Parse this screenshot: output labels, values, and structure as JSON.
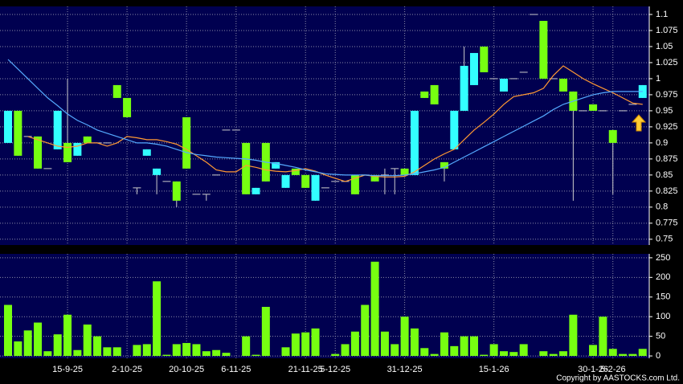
{
  "chart_data": {
    "type": "candlestick",
    "categories": [
      null,
      null,
      null,
      null,
      null,
      null,
      "15-9-25",
      null,
      null,
      null,
      null,
      null,
      "2-10-25",
      null,
      null,
      null,
      null,
      null,
      "20-10-25",
      null,
      null,
      null,
      null,
      "6-11-25",
      null,
      null,
      null,
      null,
      null,
      null,
      "21-11-25",
      null,
      null,
      "5-12-25",
      null,
      null,
      null,
      null,
      null,
      null,
      "31-12-25",
      null,
      null,
      null,
      null,
      null,
      null,
      null,
      null,
      "15-1-26",
      null,
      null,
      null,
      null,
      null,
      null,
      null,
      null,
      null,
      "30-1-26",
      null,
      "5-2-26",
      null,
      null,
      null
    ],
    "open": [
      0.9,
      0.95,
      0.91,
      0.91,
      0.86,
      0.89,
      0.9,
      0.88,
      0.91,
      0.9,
      0.9,
      0.99,
      0.97,
      0.83,
      0.88,
      0.85,
      0.84,
      0.84,
      0.94,
      0.82,
      0.82,
      0.85,
      0.92,
      0.92,
      0.9,
      0.82,
      0.9,
      0.86,
      0.83,
      0.86,
      0.85,
      0.81,
      0.83,
      0.84,
      0.84,
      0.85,
      0.85,
      0.85,
      0.85,
      0.86,
      0.86,
      0.85,
      0.98,
      0.99,
      0.87,
      0.89,
      0.95,
      0.99,
      1.05,
      1.0,
      0.98,
      1.0,
      1.01,
      1.1,
      1.09,
      1.0,
      1.0,
      0.98,
      0.95,
      0.96,
      0.95,
      0.92,
      0.95,
      0.96,
      0.97
    ],
    "high": [
      0.95,
      0.95,
      0.91,
      0.91,
      0.86,
      0.95,
      1.0,
      0.9,
      0.91,
      0.9,
      0.9,
      0.99,
      0.97,
      0.83,
      0.89,
      0.86,
      0.84,
      0.84,
      0.94,
      0.82,
      0.82,
      0.85,
      0.92,
      0.92,
      0.9,
      0.83,
      0.9,
      0.87,
      0.85,
      0.86,
      0.85,
      0.85,
      0.83,
      0.84,
      0.84,
      0.85,
      0.85,
      0.85,
      0.86,
      0.86,
      0.86,
      0.95,
      0.98,
      0.99,
      0.87,
      0.95,
      1.05,
      1.04,
      1.05,
      1.0,
      1.0,
      1.0,
      1.01,
      1.1,
      1.09,
      1.0,
      1.0,
      0.98,
      0.95,
      0.96,
      0.95,
      0.92,
      0.95,
      0.96,
      0.99
    ],
    "low": [
      0.9,
      0.88,
      0.91,
      0.86,
      0.86,
      0.89,
      0.87,
      0.88,
      0.9,
      0.9,
      0.9,
      0.97,
      0.94,
      0.82,
      0.88,
      0.82,
      0.84,
      0.8,
      0.86,
      0.82,
      0.81,
      0.85,
      0.92,
      0.92,
      0.82,
      0.82,
      0.84,
      0.86,
      0.83,
      0.85,
      0.83,
      0.81,
      0.83,
      0.84,
      0.84,
      0.82,
      0.85,
      0.84,
      0.82,
      0.82,
      0.85,
      0.85,
      0.97,
      0.96,
      0.84,
      0.89,
      0.95,
      0.99,
      1.01,
      1.0,
      0.98,
      1.0,
      1.01,
      1.1,
      1.0,
      1.0,
      0.98,
      0.81,
      0.95,
      0.95,
      0.95,
      0.82,
      0.95,
      0.96,
      0.97
    ],
    "close": [
      0.95,
      0.88,
      0.91,
      0.86,
      0.86,
      0.95,
      0.87,
      0.9,
      0.9,
      0.9,
      0.9,
      0.97,
      0.94,
      0.83,
      0.89,
      0.86,
      0.84,
      0.81,
      0.86,
      0.82,
      0.82,
      0.85,
      0.92,
      0.92,
      0.82,
      0.83,
      0.84,
      0.87,
      0.85,
      0.85,
      0.83,
      0.85,
      0.83,
      0.84,
      0.84,
      0.82,
      0.85,
      0.84,
      0.85,
      0.86,
      0.85,
      0.95,
      0.97,
      0.96,
      0.86,
      0.95,
      1.02,
      1.04,
      1.01,
      1.0,
      1.0,
      1.0,
      1.01,
      1.1,
      1.0,
      1.0,
      0.98,
      0.95,
      0.95,
      0.95,
      0.95,
      0.9,
      0.95,
      0.96,
      0.99
    ],
    "up_color": "#33ffff",
    "down_color": "#77ff11",
    "moving_averages": [
      {
        "color": "#ff9933",
        "values": [
          null,
          null,
          0.91,
          0.905,
          0.9,
          0.895,
          0.893,
          0.895,
          0.9,
          0.9,
          0.895,
          0.9,
          0.91,
          0.908,
          0.905,
          0.905,
          0.902,
          0.898,
          0.89,
          0.88,
          0.87,
          0.858,
          0.855,
          0.855,
          0.865,
          0.862,
          0.858,
          0.856,
          0.855,
          0.857,
          0.86,
          0.856,
          0.85,
          0.845,
          0.84,
          0.845,
          0.85,
          0.848,
          0.847,
          0.847,
          0.848,
          0.855,
          0.865,
          0.875,
          0.883,
          0.89,
          0.905,
          0.92,
          0.932,
          0.945,
          0.96,
          0.972,
          0.975,
          0.978,
          0.985,
          1.005,
          1.02,
          1.01,
          1.0,
          0.992,
          0.985,
          0.978,
          0.97,
          0.962,
          0.96
        ]
      },
      {
        "color": "#55aaff",
        "values": [
          1.03,
          1.015,
          1.0,
          0.985,
          0.97,
          0.958,
          0.945,
          0.935,
          0.928,
          0.92,
          0.915,
          0.91,
          0.905,
          0.9,
          0.9,
          0.898,
          0.895,
          0.89,
          0.885,
          0.882,
          0.88,
          0.878,
          0.877,
          0.876,
          0.875,
          0.873,
          0.87,
          0.868,
          0.865,
          0.862,
          0.858,
          0.855,
          0.852,
          0.851,
          0.85,
          0.85,
          0.85,
          0.849,
          0.849,
          0.849,
          0.85,
          0.852,
          0.855,
          0.858,
          0.862,
          0.87,
          0.878,
          0.886,
          0.894,
          0.902,
          0.91,
          0.918,
          0.926,
          0.934,
          0.942,
          0.952,
          0.96,
          0.965,
          0.97,
          0.975,
          0.978,
          0.98,
          0.98,
          0.98,
          0.98
        ]
      }
    ],
    "ylim": [
      0.741,
      1.1125
    ],
    "yticks": [
      0.75,
      0.775,
      0.8,
      0.825,
      0.85,
      0.875,
      0.9,
      0.925,
      0.95,
      0.975,
      1,
      1.025,
      1.05,
      1.075,
      1.1
    ],
    "grid": true,
    "volume": {
      "color": "#77ff11",
      "values": [
        130,
        37,
        65,
        85,
        12,
        55,
        105,
        15,
        80,
        50,
        22,
        22,
        0,
        28,
        30,
        190,
        3,
        30,
        33,
        30,
        12,
        15,
        8,
        0,
        50,
        3,
        125,
        0,
        22,
        57,
        60,
        70,
        0,
        5,
        30,
        62,
        130,
        240,
        62,
        30,
        100,
        70,
        20,
        5,
        60,
        25,
        50,
        50,
        3,
        30,
        12,
        10,
        30,
        0,
        12,
        5,
        12,
        105,
        0,
        28,
        100,
        18,
        5,
        5,
        18
      ],
      "ylim": [
        -6,
        260
      ],
      "yticks": [
        0,
        50,
        100,
        150,
        200,
        250
      ]
    },
    "source": "Copyright by AASTOCKS.com Ltd."
  }
}
